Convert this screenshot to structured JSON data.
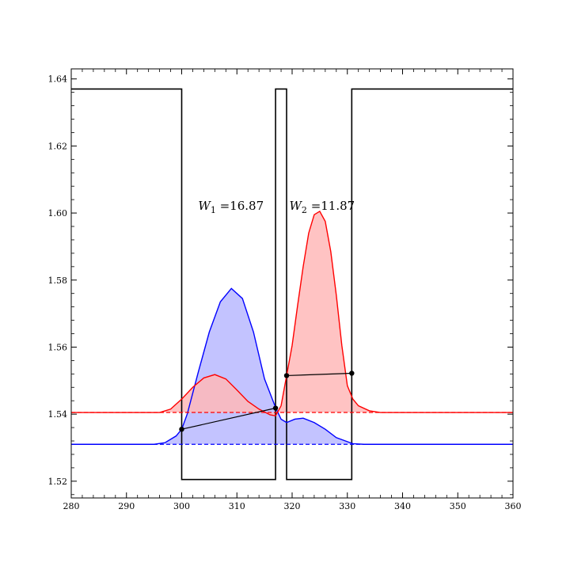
{
  "chart_data": {
    "type": "line",
    "title": "",
    "xlabel": "",
    "ylabel": "",
    "xlim": [
      280,
      360
    ],
    "ylim": [
      1.515,
      1.643
    ],
    "x_ticks": [
      280,
      290,
      300,
      310,
      320,
      330,
      340,
      350,
      360
    ],
    "y_ticks": [
      1.52,
      1.54,
      1.56,
      1.58,
      1.6,
      1.62,
      1.64
    ],
    "grid": false,
    "legend": "none",
    "series": [
      {
        "kind": "step",
        "color": "#000000",
        "points": [
          [
            280,
            1.637
          ],
          [
            300,
            1.637
          ],
          [
            300,
            1.5205
          ],
          [
            317,
            1.5205
          ],
          [
            317,
            1.637
          ],
          [
            319,
            1.637
          ],
          [
            319,
            1.5205
          ],
          [
            330.8,
            1.5205
          ],
          [
            330.8,
            1.637
          ],
          [
            360,
            1.637
          ]
        ]
      },
      {
        "kind": "filled-profile",
        "color": "#0000ff",
        "fill": "#b8b8ff",
        "baseline": 1.531,
        "points": [
          [
            280,
            1.531
          ],
          [
            295,
            1.531
          ],
          [
            297,
            1.5315
          ],
          [
            299,
            1.5335
          ],
          [
            300,
            1.5355
          ],
          [
            301,
            1.54
          ],
          [
            303,
            1.5525
          ],
          [
            305,
            1.5645
          ],
          [
            307,
            1.5735
          ],
          [
            309,
            1.5775
          ],
          [
            311,
            1.5745
          ],
          [
            313,
            1.5645
          ],
          [
            315,
            1.5505
          ],
          [
            317,
            1.542
          ],
          [
            318,
            1.5385
          ],
          [
            319,
            1.5375
          ],
          [
            320.5,
            1.5385
          ],
          [
            322,
            1.5388
          ],
          [
            324,
            1.5375
          ],
          [
            326,
            1.5355
          ],
          [
            328,
            1.533
          ],
          [
            330,
            1.5318
          ],
          [
            331,
            1.5312
          ],
          [
            333,
            1.531
          ],
          [
            360,
            1.531
          ]
        ]
      },
      {
        "kind": "filled-profile",
        "color": "#ff0000",
        "fill": "#ffb8b8",
        "baseline": 1.5405,
        "points": [
          [
            280,
            1.5405
          ],
          [
            296,
            1.5405
          ],
          [
            298,
            1.5415
          ],
          [
            300,
            1.5445
          ],
          [
            302,
            1.548
          ],
          [
            304,
            1.5508
          ],
          [
            306,
            1.5518
          ],
          [
            308,
            1.5505
          ],
          [
            310,
            1.5472
          ],
          [
            312,
            1.5438
          ],
          [
            314,
            1.5415
          ],
          [
            316,
            1.5398
          ],
          [
            317,
            1.5395
          ],
          [
            318,
            1.5425
          ],
          [
            319,
            1.5515
          ],
          [
            320,
            1.5605
          ],
          [
            321,
            1.5725
          ],
          [
            322,
            1.584
          ],
          [
            323,
            1.594
          ],
          [
            324,
            1.5995
          ],
          [
            325,
            1.6005
          ],
          [
            326,
            1.5975
          ],
          [
            327,
            1.5885
          ],
          [
            328,
            1.5755
          ],
          [
            329,
            1.5605
          ],
          [
            330,
            1.5485
          ],
          [
            331,
            1.5445
          ],
          [
            332,
            1.5425
          ],
          [
            334,
            1.541
          ],
          [
            336,
            1.5405
          ],
          [
            360,
            1.5405
          ]
        ]
      },
      {
        "kind": "dashed",
        "color": "#0000ff",
        "points": [
          [
            280,
            1.531
          ],
          [
            360,
            1.531
          ]
        ]
      },
      {
        "kind": "dashed",
        "color": "#ff0000",
        "points": [
          [
            280,
            1.5405
          ],
          [
            360,
            1.5405
          ]
        ]
      },
      {
        "kind": "segment-with-markers",
        "color": "#000000",
        "points": [
          [
            300,
            1.5355
          ],
          [
            317,
            1.5418
          ]
        ]
      },
      {
        "kind": "segment-with-markers",
        "color": "#000000",
        "points": [
          [
            319,
            1.5515
          ],
          [
            330.8,
            1.5522
          ]
        ]
      }
    ],
    "annotations": [
      {
        "symbol": "W",
        "subscript": "1",
        "text": " =16.87",
        "x": 303,
        "y": 1.601
      },
      {
        "symbol": "W",
        "subscript": "2",
        "text": " =11.87",
        "x": 319.5,
        "y": 1.601
      }
    ]
  }
}
